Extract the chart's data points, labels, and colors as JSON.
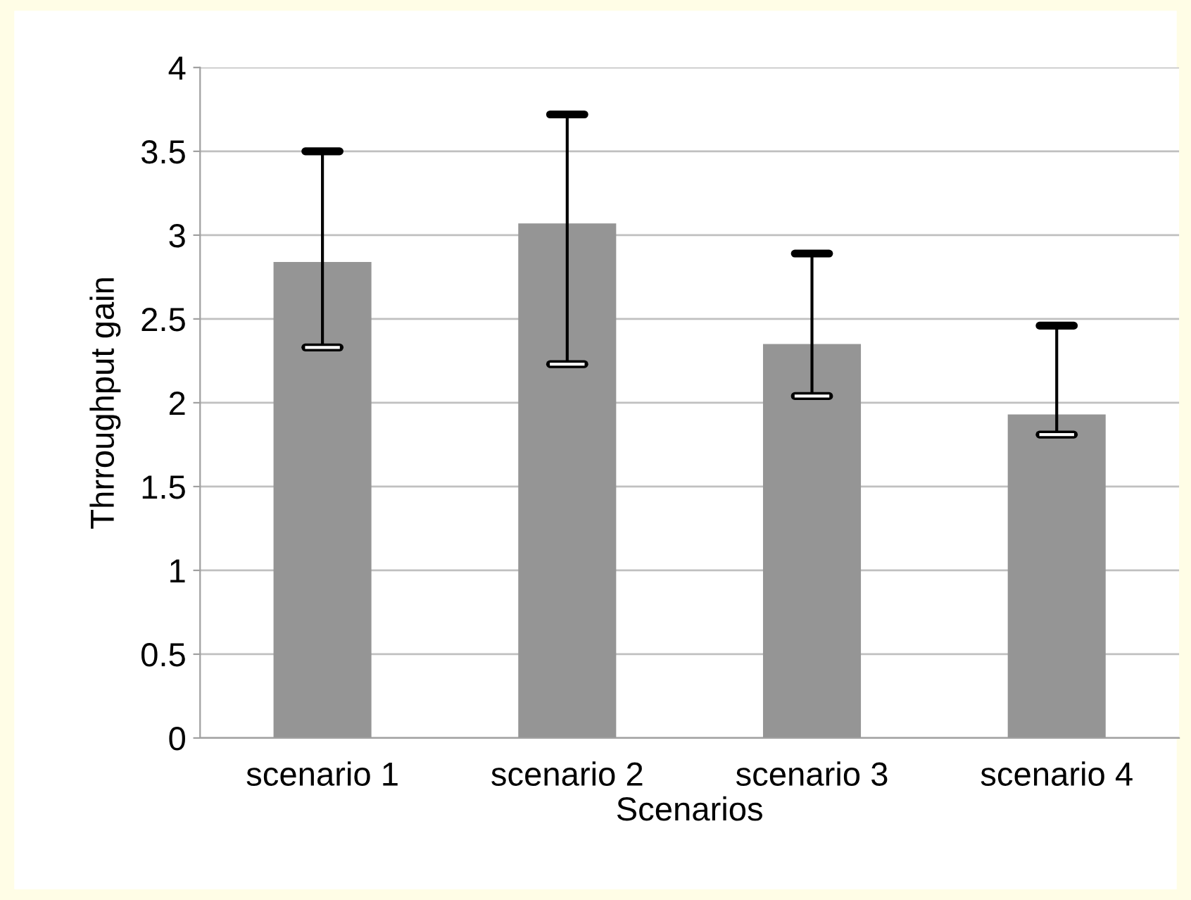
{
  "chart_data": {
    "type": "bar",
    "xlabel": "Scenarios",
    "ylabel": "Thrroughput gain",
    "categories": [
      "scenario 1",
      "scenario 2",
      "scenario 3",
      "scenario 4"
    ],
    "values": [
      2.84,
      3.07,
      2.35,
      1.93
    ],
    "errors": [
      [
        2.33,
        3.5
      ],
      [
        2.23,
        3.72
      ],
      [
        2.04,
        2.89
      ],
      [
        1.81,
        2.46
      ]
    ],
    "color": "#959595",
    "ylim": [
      0,
      4
    ],
    "yticks": [
      0,
      0.5,
      1,
      1.5,
      2,
      2.5,
      3,
      3.5,
      4
    ],
    "grid": "y",
    "legend": false
  }
}
